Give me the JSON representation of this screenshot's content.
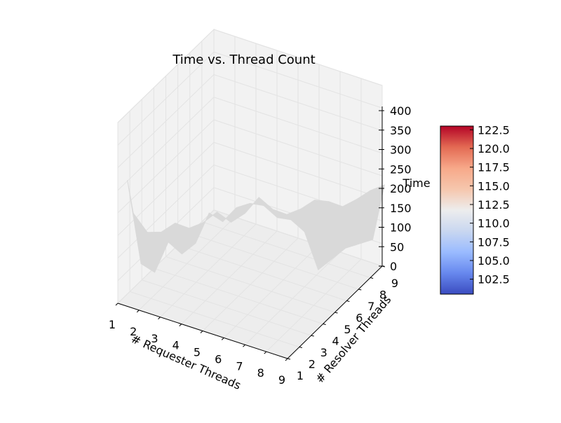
{
  "chart_data": {
    "type": "surface",
    "title": "Time vs. Thread Count",
    "xlabel": "# Requester Threads",
    "ylabel": "# Resolver Threads",
    "zlabel": "Time",
    "x_ticks": [
      "1",
      "2",
      "3",
      "4",
      "5",
      "6",
      "7",
      "8",
      "9"
    ],
    "y_ticks": [
      "1",
      "2",
      "3",
      "4",
      "5",
      "6",
      "7",
      "8",
      "9"
    ],
    "z_ticks": [
      "0",
      "50",
      "100",
      "150",
      "200",
      "250",
      "300",
      "350",
      "400"
    ],
    "z_range": [
      0,
      400
    ],
    "grid": true,
    "surface_color": "#d9d9d9",
    "pane_color": "#f2f2f2",
    "grid_color": "#e3e3e3",
    "silhouette_time": [
      350,
      90,
      60,
      150,
      110,
      140,
      230,
      200,
      240,
      250,
      240,
      200,
      190,
      150,
      30,
      60,
      90,
      100,
      110
    ],
    "colorbar": {
      "ticks": [
        "102.5",
        "105.0",
        "107.5",
        "110.0",
        "112.5",
        "115.0",
        "117.5",
        "120.0",
        "122.5"
      ],
      "range": [
        100.5,
        123.0
      ],
      "colormap": "coolwarm",
      "colors": [
        "#3b4cc0",
        "#6788ee",
        "#9abbff",
        "#c9d7f0",
        "#ededed",
        "#f6c6ad",
        "#f7a889",
        "#e36a53",
        "#b40426"
      ]
    }
  }
}
